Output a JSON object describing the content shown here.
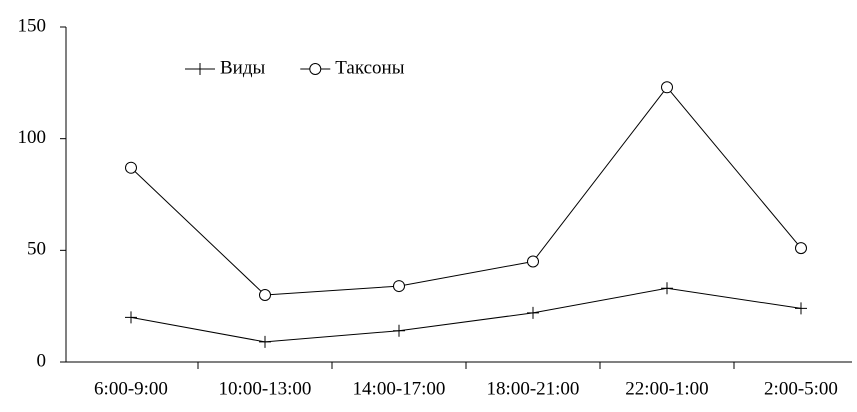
{
  "chart_data": {
    "type": "line",
    "categories": [
      "6:00-9:00",
      "10:00-13:00",
      "14:00-17:00",
      "18:00-21:00",
      "22:00-1:00",
      "2:00-5:00"
    ],
    "series": [
      {
        "name": "Виды",
        "color": "#000000",
        "marker": "plus",
        "values": [
          20,
          9,
          14,
          22,
          33,
          24
        ]
      },
      {
        "name": "Таксоны",
        "color": "#000000",
        "marker": "circle",
        "values": [
          87,
          30,
          34,
          45,
          123,
          51
        ]
      }
    ],
    "ylim": [
      0,
      150
    ],
    "yticks": [
      0,
      50,
      100,
      150
    ],
    "grid": false
  }
}
